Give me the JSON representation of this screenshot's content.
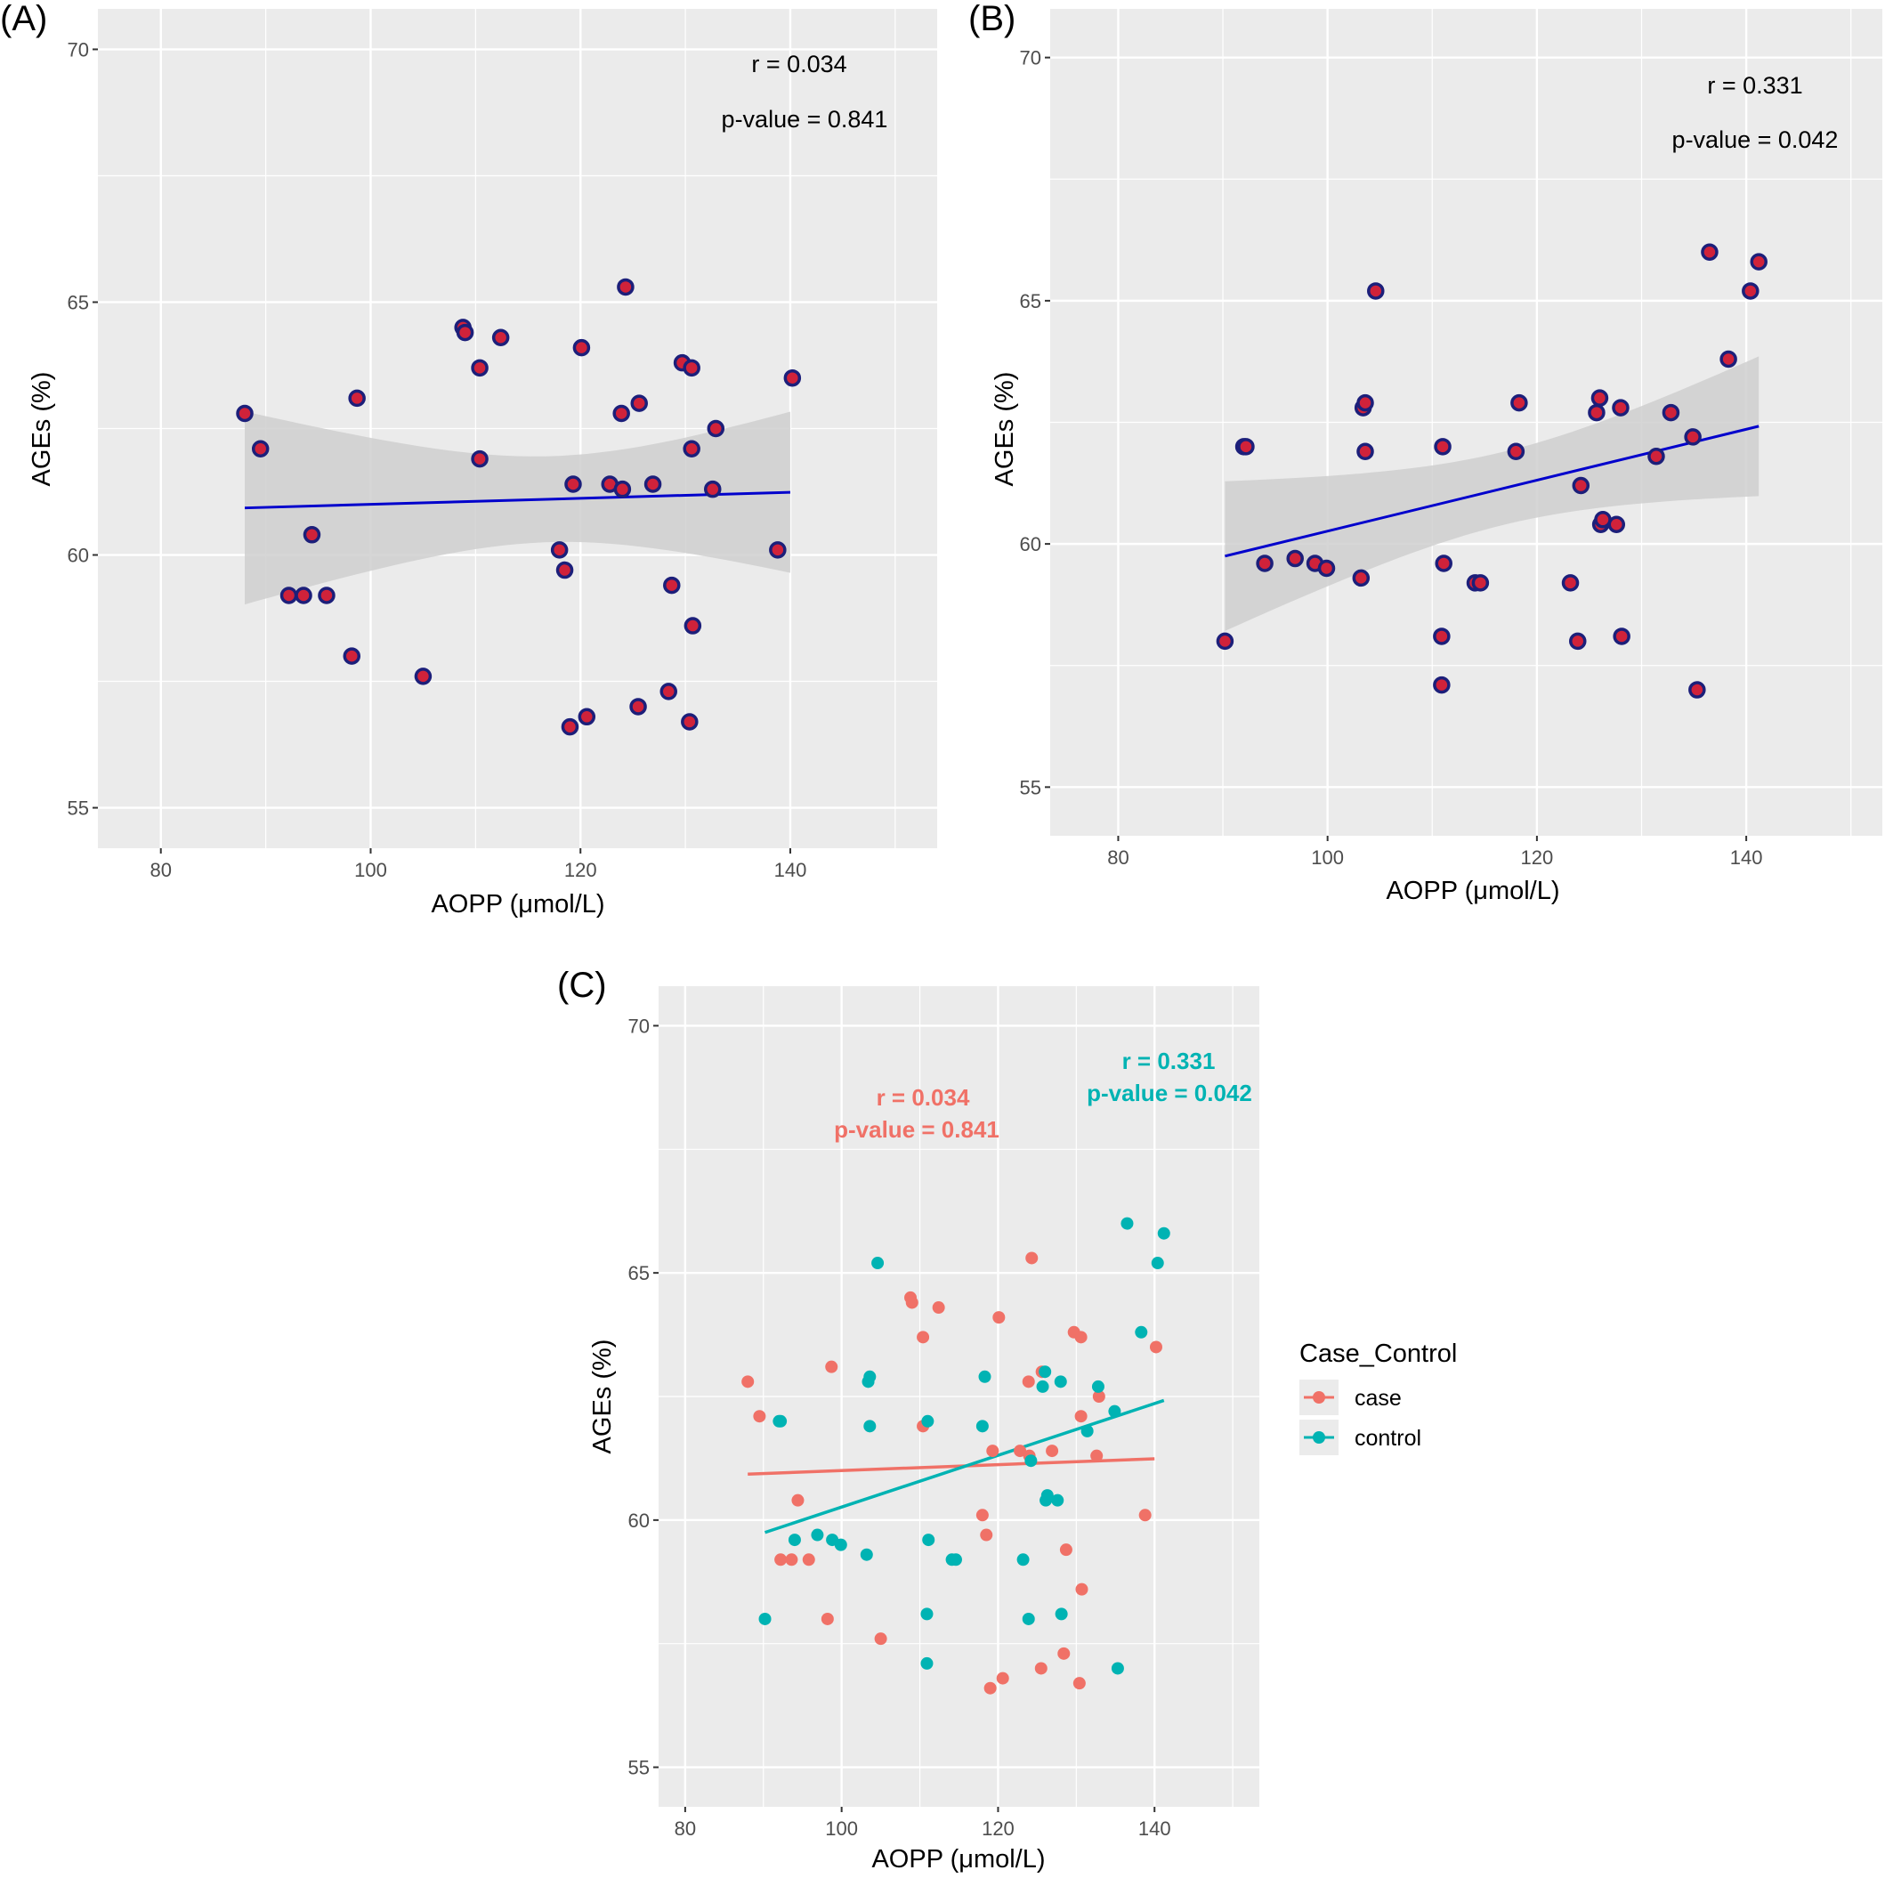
{
  "figure": {
    "panels": [
      "(A)",
      "(B)",
      "(C)"
    ]
  },
  "colors": {
    "panel_bg": "#ebebeb",
    "grid": "#ffffff",
    "ribbon": "#cfcfcf",
    "point_fill": "#d0223a",
    "point_edge": "#1c1f7a",
    "fit_line": "#0000cc",
    "case": "#f07167",
    "control": "#00b3b3"
  },
  "chart_data": [
    {
      "type": "scatter",
      "panel": "(A)",
      "xlabel": "AOPP (μmol/L)",
      "ylabel": "AGEs (%)",
      "xlim": [
        74,
        154
      ],
      "ylim": [
        54.2,
        70.8
      ],
      "xticks": [
        80,
        100,
        120,
        140
      ],
      "yticks": [
        55,
        60,
        65,
        70
      ],
      "grid": true,
      "annotations": [
        "r = 0.034",
        "p-value = 0.841"
      ],
      "x": [
        88.0,
        89.5,
        92.2,
        93.6,
        94.4,
        95.8,
        98.2,
        98.7,
        105.0,
        108.8,
        109.0,
        110.4,
        110.4,
        112.4,
        118.0,
        118.5,
        119.0,
        119.3,
        120.1,
        120.6,
        122.8,
        123.9,
        124.0,
        124.3,
        125.5,
        125.6,
        126.9,
        128.4,
        128.7,
        129.7,
        130.4,
        130.6,
        130.6,
        130.7,
        132.6,
        132.9,
        138.8,
        140.2
      ],
      "y": [
        62.8,
        62.1,
        59.2,
        59.2,
        60.4,
        59.2,
        58.0,
        63.1,
        57.6,
        64.5,
        64.4,
        63.7,
        61.9,
        64.3,
        60.1,
        59.7,
        56.6,
        61.4,
        64.1,
        56.8,
        61.4,
        62.8,
        61.3,
        65.3,
        57.0,
        63.0,
        61.4,
        57.3,
        59.4,
        63.8,
        56.7,
        63.7,
        62.1,
        58.6,
        61.3,
        62.5,
        60.1,
        63.5
      ],
      "trend": {
        "x": [
          88,
          140
        ],
        "y": [
          60.93,
          61.24
        ]
      }
    },
    {
      "type": "scatter",
      "panel": "(B)",
      "xlabel": "AOPP (μmol/L)",
      "ylabel": "AGEs (%)",
      "xlim": [
        73.5,
        153
      ],
      "ylim": [
        54.0,
        71.0
      ],
      "xticks": [
        80,
        100,
        120,
        140
      ],
      "yticks": [
        55,
        60,
        65,
        70
      ],
      "grid": true,
      "annotations": [
        "r = 0.331",
        "p-value = 0.042"
      ],
      "x": [
        90.2,
        92.0,
        92.2,
        94.0,
        96.9,
        98.8,
        99.9,
        103.2,
        103.4,
        103.6,
        103.6,
        104.6,
        110.9,
        110.9,
        111.0,
        111.1,
        114.1,
        114.6,
        118.0,
        118.3,
        123.2,
        123.9,
        124.2,
        125.7,
        126.0,
        126.1,
        126.3,
        127.6,
        128.0,
        128.1,
        131.4,
        132.8,
        134.9,
        135.3,
        136.5,
        138.3,
        140.4,
        141.2
      ],
      "y": [
        58.0,
        62.0,
        62.0,
        59.6,
        59.7,
        59.6,
        59.5,
        59.3,
        62.8,
        62.9,
        61.9,
        65.2,
        58.1,
        57.1,
        62.0,
        59.6,
        59.2,
        59.2,
        61.9,
        62.9,
        59.2,
        58.0,
        61.2,
        62.7,
        63.0,
        60.4,
        60.5,
        60.4,
        62.8,
        58.1,
        61.8,
        62.7,
        62.2,
        57.0,
        66.0,
        63.8,
        65.2,
        65.8
      ],
      "trend": {
        "x": [
          90.2,
          141.2
        ],
        "y": [
          59.75,
          62.42
        ]
      }
    },
    {
      "type": "scatter",
      "panel": "(C)",
      "xlabel": "AOPP (μmol/L)",
      "ylabel": "AGEs (%)",
      "xlim": [
        76.6,
        153.4
      ],
      "ylim": [
        54.2,
        70.8
      ],
      "xticks": [
        80,
        100,
        120,
        140
      ],
      "yticks": [
        55,
        60,
        65,
        70
      ],
      "grid": true,
      "legend": {
        "title": "Case_Control",
        "position": "right"
      },
      "series": [
        {
          "name": "case",
          "annotations": [
            "r = 0.034",
            "p-value = 0.841"
          ],
          "x": [
            88.0,
            89.5,
            92.2,
            93.6,
            94.4,
            95.8,
            98.2,
            98.7,
            105.0,
            108.8,
            109.0,
            110.4,
            110.4,
            112.4,
            118.0,
            118.5,
            119.0,
            119.3,
            120.1,
            120.6,
            122.8,
            123.9,
            124.0,
            124.3,
            125.5,
            125.6,
            126.9,
            128.4,
            128.7,
            129.7,
            130.4,
            130.6,
            130.6,
            130.7,
            132.6,
            132.9,
            138.8,
            140.2
          ],
          "y": [
            62.8,
            62.1,
            59.2,
            59.2,
            60.4,
            59.2,
            58.0,
            63.1,
            57.6,
            64.5,
            64.4,
            63.7,
            61.9,
            64.3,
            60.1,
            59.7,
            56.6,
            61.4,
            64.1,
            56.8,
            61.4,
            62.8,
            61.3,
            65.3,
            57.0,
            63.0,
            61.4,
            57.3,
            59.4,
            63.8,
            56.7,
            63.7,
            62.1,
            58.6,
            61.3,
            62.5,
            60.1,
            63.5
          ],
          "trend": {
            "x": [
              88,
              140
            ],
            "y": [
              60.93,
              61.24
            ]
          }
        },
        {
          "name": "control",
          "annotations": [
            "r = 0.331",
            "p-value = 0.042"
          ],
          "x": [
            90.2,
            92.0,
            92.2,
            94.0,
            96.9,
            98.8,
            99.9,
            103.2,
            103.4,
            103.6,
            103.6,
            104.6,
            110.9,
            110.9,
            111.0,
            111.1,
            114.1,
            114.6,
            118.0,
            118.3,
            123.2,
            123.9,
            124.2,
            125.7,
            126.0,
            126.1,
            126.3,
            127.6,
            128.0,
            128.1,
            131.4,
            132.8,
            134.9,
            135.3,
            136.5,
            138.3,
            140.4,
            141.2
          ],
          "y": [
            58.0,
            62.0,
            62.0,
            59.6,
            59.7,
            59.6,
            59.5,
            59.3,
            62.8,
            62.9,
            61.9,
            65.2,
            58.1,
            57.1,
            62.0,
            59.6,
            59.2,
            59.2,
            61.9,
            62.9,
            59.2,
            58.0,
            61.2,
            62.7,
            63.0,
            60.4,
            60.5,
            60.4,
            62.8,
            58.1,
            61.8,
            62.7,
            62.2,
            57.0,
            66.0,
            63.8,
            65.2,
            65.8
          ],
          "trend": {
            "x": [
              90.2,
              141.2
            ],
            "y": [
              59.75,
              62.42
            ]
          }
        }
      ]
    }
  ]
}
